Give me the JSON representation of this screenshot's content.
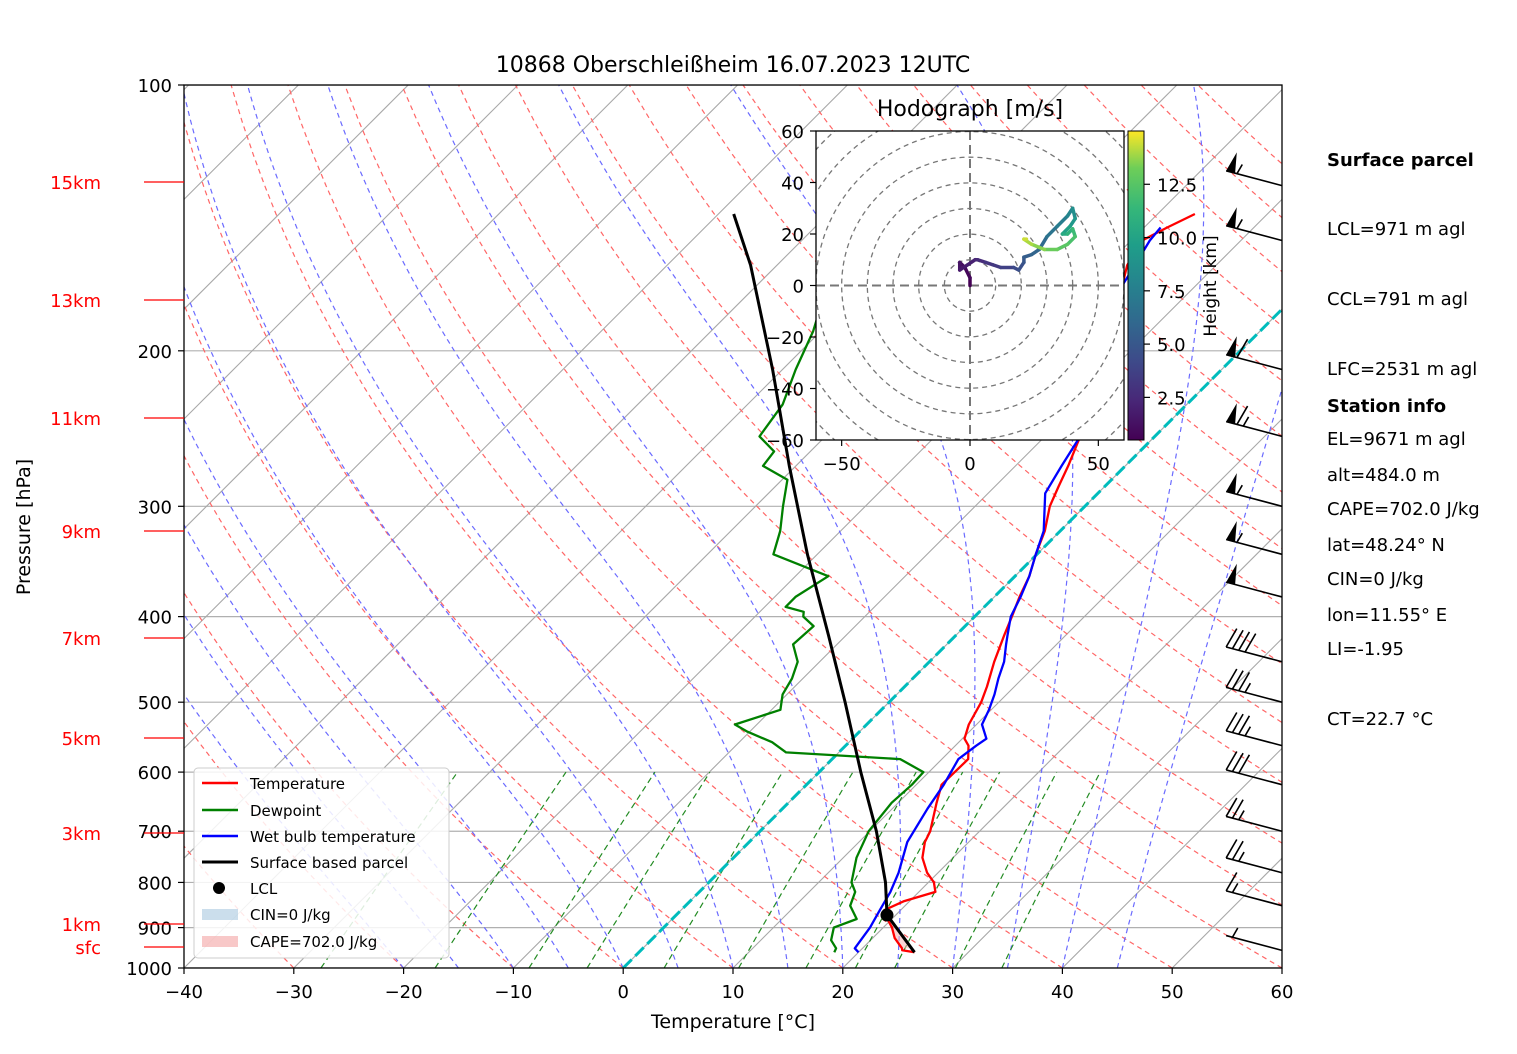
{
  "chart_data": {
    "type": "line",
    "title": "10868 Oberschleißheim 16.07.2023 12UTC",
    "xlabel": "Temperature [°C]",
    "ylabel": "Pressure [hPa]",
    "xlim": [
      -40,
      60
    ],
    "ylim": [
      1000,
      100
    ],
    "yscale": "log",
    "skew": true,
    "grid": true,
    "x_ticks": [
      "−40",
      "−30",
      "−20",
      "−10",
      "0",
      "10",
      "20",
      "30",
      "40",
      "50",
      "60"
    ],
    "y_ticks": [
      "100",
      "200",
      "300",
      "400",
      "500",
      "600",
      "700",
      "800",
      "900",
      "1000"
    ],
    "height_labels": [
      {
        "label": "15km",
        "p": 150
      },
      {
        "label": "13km",
        "p": 189
      },
      {
        "label": "11km",
        "p": 238
      },
      {
        "label": "9km",
        "p": 296
      },
      {
        "label": "7km",
        "p": 366
      },
      {
        "label": "5km",
        "p": 446
      },
      {
        "label": "3km",
        "p": 544
      },
      {
        "label": "1km",
        "p": 658
      },
      {
        "label": "sfc",
        "p": 707
      }
    ],
    "series": [
      {
        "name": "Temperature",
        "color": "#ff0000",
        "x": [
          25.1,
          23.8,
          23.6,
          22.0,
          20.8,
          19.6,
          18.5,
          19.5,
          21.5,
          20.5,
          19.0,
          17.2,
          16.0,
          15.5,
          13.5,
          12.3,
          12.4,
          11.2,
          10.2,
          9.3,
          8.4,
          7.5,
          5.9,
          4.4,
          3.4,
          2.3,
          1.3,
          -0.1,
          -1.4,
          -3.2,
          -4.2,
          -5.2,
          -6.8,
          -8.5,
          -10.2,
          -11.5,
          -13.0,
          -14.8,
          -16.5,
          -18.1,
          -19.0,
          -17.9,
          -16.6
        ],
        "y": [
          960,
          955,
          950,
          925,
          900,
          880,
          860,
          840,
          820,
          800,
          780,
          750,
          720,
          700,
          650,
          620,
          580,
          560,
          550,
          530,
          500,
          480,
          450,
          420,
          400,
          380,
          360,
          340,
          320,
          300,
          285,
          270,
          250,
          230,
          210,
          200,
          190,
          180,
          170,
          160,
          150,
          145,
          140
        ]
      },
      {
        "name": "Dewpoint",
        "color": "#008000",
        "x": [
          17.8,
          17.6,
          16.4,
          15.5,
          16.8,
          15.0,
          14.2,
          13.0,
          11.2,
          9.9,
          9.4,
          9.6,
          9.5,
          6.2,
          -4.8,
          -7.0,
          -10.2,
          -12.0,
          -9.2,
          -10.4,
          -11.0,
          -12.0,
          -14.0,
          -13.8,
          -15.6,
          -16.0,
          -18.1,
          -18.1,
          -17.0,
          -24.0,
          -25.5,
          -27.5,
          -29.5,
          -33.0,
          -33.3,
          -36.0,
          -36.8,
          -38.8,
          -40.7,
          -43.4,
          -44.8,
          -44.8,
          -44.0
        ],
        "y": [
          960,
          950,
          930,
          900,
          880,
          850,
          820,
          800,
          750,
          700,
          650,
          620,
          600,
          580,
          570,
          555,
          540,
          530,
          510,
          490,
          470,
          450,
          430,
          410,
          400,
          395,
          390,
          380,
          360,
          340,
          320,
          300,
          280,
          270,
          260,
          250,
          230,
          210,
          190,
          170,
          155,
          148,
          145
        ]
      },
      {
        "name": "Wet bulb temperature",
        "color": "#0000ff",
        "x": [
          20.0,
          19.3,
          18.8,
          18.1,
          17.4,
          16.4,
          14.4,
          13.2,
          12.5,
          11.5,
          11.9,
          12.2,
          10.5,
          9.8,
          8.9,
          7.8,
          6.8,
          5.4,
          4.7,
          3.3,
          2.4,
          1.3,
          -0.1,
          -1.5,
          -4.8,
          -5.8,
          -6.8,
          -9.4,
          -10.9,
          -12.0,
          -14.0,
          -16.6,
          -17.4,
          -18.3,
          -18.5
        ],
        "y": [
          960,
          950,
          900,
          860,
          820,
          780,
          720,
          660,
          620,
          580,
          560,
          550,
          530,
          510,
          490,
          470,
          450,
          430,
          420,
          400,
          380,
          360,
          340,
          320,
          290,
          270,
          250,
          230,
          210,
          200,
          190,
          170,
          160,
          150,
          145
        ]
      },
      {
        "name": "Surface based parcel",
        "color": "#000000",
        "x": [
          25.1,
          19.2,
          16.1,
          10.6,
          3.8,
          -4.0,
          -11.6,
          -20.9,
          -30.6,
          -40.9,
          -52.4,
          -58.6
        ],
        "y": [
          960,
          871,
          800,
          700,
          600,
          500,
          420,
          340,
          270,
          210,
          160,
          140
        ]
      }
    ],
    "lcl": {
      "t": 19.2,
      "p": 871
    },
    "cape_area_label": "CAPE=702.0 J/kg",
    "cin_area_label": "CIN=0 J/kg",
    "lcl_label": "LCL",
    "legend_loc": "lower-left",
    "legend": [
      "Temperature",
      "Dewpoint",
      "Wet bulb temperature",
      "Surface based parcel",
      "LCL",
      "CIN=0 J/kg",
      "CAPE=702.0 J/kg"
    ],
    "cape_color": "#f5b0b0",
    "cin_color": "#a9c8df",
    "wind_barbs": [
      {
        "p": 955,
        "speed_kt": 5,
        "dir": 250
      },
      {
        "p": 850,
        "speed_kt": 15,
        "dir": 240
      },
      {
        "p": 780,
        "speed_kt": 25,
        "dir": 240
      },
      {
        "p": 700,
        "speed_kt": 25,
        "dir": 245
      },
      {
        "p": 620,
        "speed_kt": 30,
        "dir": 245
      },
      {
        "p": 560,
        "speed_kt": 35,
        "dir": 245
      },
      {
        "p": 500,
        "speed_kt": 35,
        "dir": 245
      },
      {
        "p": 450,
        "speed_kt": 40,
        "dir": 245
      },
      {
        "p": 380,
        "speed_kt": 50,
        "dir": 245
      },
      {
        "p": 340,
        "speed_kt": 55,
        "dir": 245
      },
      {
        "p": 300,
        "speed_kt": 55,
        "dir": 245
      },
      {
        "p": 250,
        "speed_kt": 65,
        "dir": 245
      },
      {
        "p": 210,
        "speed_kt": 60,
        "dir": 245
      },
      {
        "p": 150,
        "speed_kt": 55,
        "dir": 245
      },
      {
        "p": 130,
        "speed_kt": 55,
        "dir": 245
      }
    ],
    "hodograph": {
      "title": "Hodograph [m/s]",
      "xlim": [
        -60,
        60
      ],
      "ylim": [
        -60,
        60
      ],
      "x_ticks": [
        "−50",
        "0",
        "50"
      ],
      "y_ticks": [
        "60",
        "40",
        "20",
        "0",
        "−20",
        "−40",
        "−60"
      ],
      "colorbar_label": "Height [km]",
      "colorbar_ticks": [
        "2.5",
        "5.0",
        "7.5",
        "10.0",
        "12.5"
      ],
      "colorbar_range": [
        0.5,
        15
      ],
      "u": [
        0,
        0,
        -2,
        -4,
        -4,
        -1,
        2,
        3,
        6,
        9,
        12,
        17,
        19,
        21,
        21,
        24,
        27,
        30,
        34,
        38,
        40,
        41,
        39,
        36,
        38,
        40,
        41,
        38,
        34,
        29,
        24,
        21,
        22
      ],
      "v": [
        0,
        3,
        7,
        9,
        6,
        8,
        10,
        10,
        9,
        8,
        7,
        7,
        6,
        9,
        11,
        12,
        14,
        19,
        23,
        27,
        30,
        26,
        23,
        20,
        20,
        22,
        19,
        16,
        14,
        14,
        16,
        18,
        18
      ],
      "h": [
        0.5,
        0.8,
        1.1,
        1.4,
        1.7,
        2.0,
        2.3,
        2.6,
        3.0,
        3.3,
        3.7,
        4.2,
        4.6,
        5.0,
        5.4,
        5.8,
        6.2,
        6.8,
        7.4,
        8.0,
        8.6,
        9.2,
        9.8,
        10.4,
        11.0,
        11.6,
        12.1,
        12.6,
        13.1,
        13.6,
        14.0,
        14.4,
        14.7
      ]
    }
  },
  "surface_parcel": {
    "title": "Surface parcel",
    "lines": [
      "LCL=971 m agl",
      "CCL=791 m agl",
      "LFC=2531 m agl",
      "EL=9671 m agl",
      "CAPE=702.0 J/kg",
      "CIN=0 J/kg",
      "LI=-1.95",
      "CT=22.7 °C"
    ]
  },
  "station_info": {
    "title": "Station info",
    "lines": [
      "alt=484.0 m",
      "lat=48.24° N",
      "lon=11.55° E"
    ]
  }
}
